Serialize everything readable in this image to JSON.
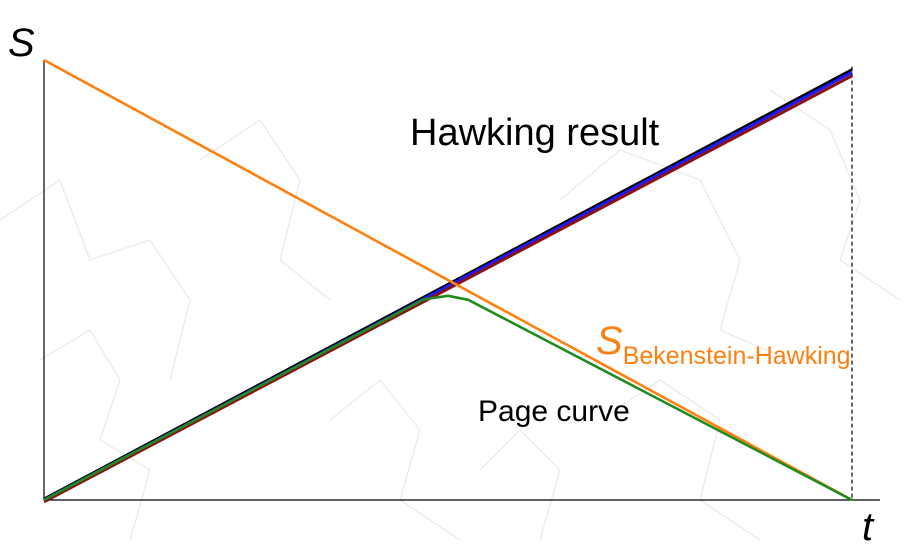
{
  "chart_data": {
    "type": "line",
    "title": "",
    "xlabel": "t",
    "ylabel": "S",
    "xlim": [
      0,
      1
    ],
    "ylim": [
      0,
      1
    ],
    "grid": false,
    "legend": "none",
    "series": [
      {
        "name": "",
        "color": "#000000",
        "x": [
          0,
          1
        ],
        "y": [
          0.002,
          0.978
        ]
      },
      {
        "name": "",
        "color": "#1a1aff",
        "x": [
          0,
          1
        ],
        "y": [
          0.0,
          0.972
        ]
      },
      {
        "name": "",
        "color": "#8b1010",
        "x": [
          0,
          1
        ],
        "y": [
          -0.004,
          0.964
        ]
      },
      {
        "name": "",
        "color": "#ff7f0e",
        "x": [
          0,
          1
        ],
        "y": [
          1.0,
          0.0
        ]
      },
      {
        "name": "",
        "color": "#1f8c1f",
        "x": [
          0,
          0.47,
          0.5,
          0.525,
          1
        ],
        "y": [
          0.0,
          0.456,
          0.464,
          0.455,
          0.0
        ]
      }
    ],
    "annotations": [
      {
        "id": "hawking",
        "text": "Hawking result",
        "color": "#000000"
      },
      {
        "id": "bh_main",
        "text": "S",
        "sub": "Bekenstein-Hawking",
        "color": "#ff7f0e"
      },
      {
        "id": "page",
        "text": "Page curve",
        "color": "#000000"
      }
    ],
    "vline": {
      "x": 1,
      "style": "dashed",
      "color": "#000000"
    }
  }
}
